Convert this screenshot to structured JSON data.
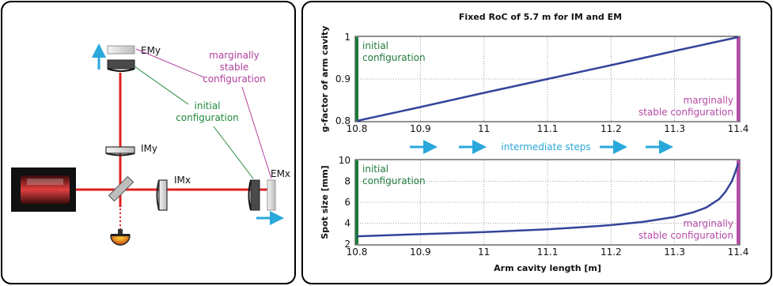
{
  "setup": {
    "labels": {
      "emy": "EMy",
      "imy": "IMy",
      "imx": "IMx",
      "emx": "EMx",
      "marginal_line1": "marginally",
      "marginal_line2": "stable",
      "marginal_line3": "configuration",
      "initial_line1": "initial",
      "initial_line2": "configuration"
    },
    "colors": {
      "beam": "#e02020",
      "arrow": "#2aa8dc",
      "marginal": "#b0409c",
      "initial": "#1f8a3a"
    }
  },
  "colors": {
    "curve": "#34449a",
    "initial": "#1f7a3a",
    "marginal": "#b54aa6",
    "steps": "#2aa8dc"
  },
  "chart_data": [
    {
      "type": "line",
      "title": "Fixed RoC of 5.7 m for IM and EM",
      "xlabel": "",
      "ylabel": "g-factor of arm cavity",
      "xlim": [
        10.8,
        11.4
      ],
      "ylim": [
        0.8,
        1.0
      ],
      "xticks": [
        "10.8",
        "10.9",
        "11",
        "11.1",
        "11.2",
        "11.3",
        "11.4"
      ],
      "yticks": [
        "0.8",
        "0.9",
        "1"
      ],
      "x": [
        10.8,
        10.9,
        11.0,
        11.1,
        11.2,
        11.3,
        11.4
      ],
      "y": [
        0.8,
        0.833,
        0.867,
        0.9,
        0.933,
        0.967,
        1.0
      ],
      "annotations": {
        "initial_line1": "initial",
        "initial_line2": "configuration",
        "marginal_line1": "marginally",
        "marginal_line2": "stable configuration"
      }
    },
    {
      "type": "line",
      "title": "",
      "xlabel": "Arm cavity length [m]",
      "ylabel": "Spot size [mm]",
      "xlim": [
        10.8,
        11.4
      ],
      "ylim": [
        2,
        10
      ],
      "xticks": [
        "10.8",
        "10.9",
        "11",
        "11.1",
        "11.2",
        "11.3",
        "11.4"
      ],
      "yticks": [
        "2",
        "4",
        "6",
        "8",
        "10"
      ],
      "x": [
        10.8,
        10.85,
        10.9,
        10.95,
        11.0,
        11.05,
        11.1,
        11.15,
        11.2,
        11.25,
        11.3,
        11.33,
        11.35,
        11.37,
        11.38,
        11.39,
        11.395,
        11.4
      ],
      "y": [
        2.75,
        2.85,
        2.95,
        3.05,
        3.15,
        3.28,
        3.42,
        3.6,
        3.82,
        4.12,
        4.6,
        5.05,
        5.5,
        6.3,
        7.0,
        8.0,
        8.8,
        9.7
      ],
      "annotations": {
        "initial_line1": "initial",
        "initial_line2": "configuration",
        "marginal_line1": "marginally",
        "marginal_line2": "stable configuration"
      }
    }
  ],
  "steps_label": "intermediate steps"
}
